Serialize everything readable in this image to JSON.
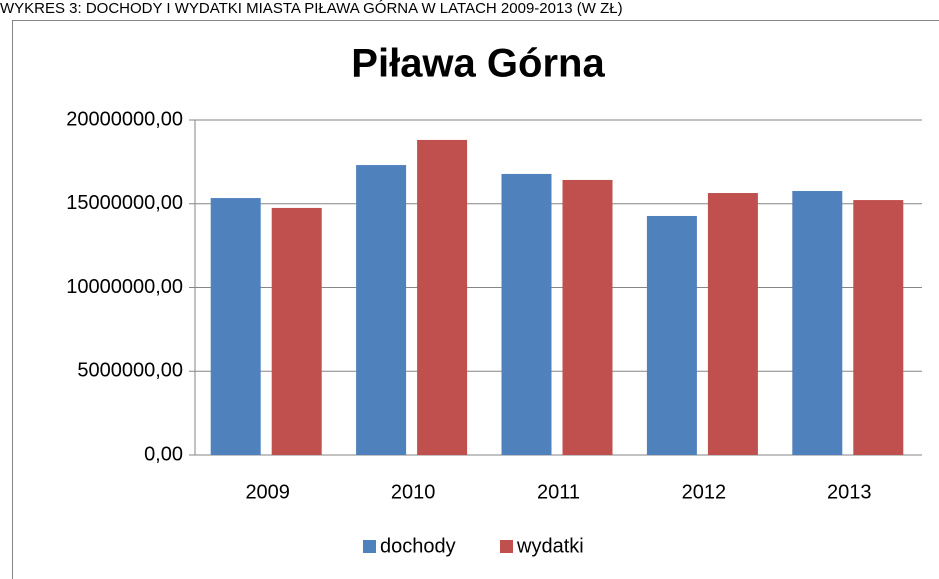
{
  "caption": "WYKRES 3: DOCHODY I WYDATKI MIASTA PIŁAWA GÓRNA W LATACH 2009-2013 (W ZŁ)",
  "chart_data": {
    "type": "bar",
    "title": "Piława Górna",
    "categories": [
      "2009",
      "2010",
      "2011",
      "2012",
      "2013"
    ],
    "series": [
      {
        "name": "dochody",
        "color": "#4f81bd",
        "values": [
          15340000,
          17310000,
          16780000,
          14270000,
          15760000
        ]
      },
      {
        "name": "wydatki",
        "color": "#c0504d",
        "values": [
          14750000,
          18810000,
          16420000,
          15640000,
          15220000
        ]
      }
    ],
    "ylim": [
      0,
      20000000
    ],
    "yticks": [
      {
        "value": 0,
        "label": "0,00"
      },
      {
        "value": 5000000,
        "label": "5000000,00"
      },
      {
        "value": 10000000,
        "label": "10000000,00"
      },
      {
        "value": 15000000,
        "label": "15000000,00"
      },
      {
        "value": 20000000,
        "label": "20000000,00"
      }
    ],
    "grid": true,
    "legend": "bottom"
  }
}
